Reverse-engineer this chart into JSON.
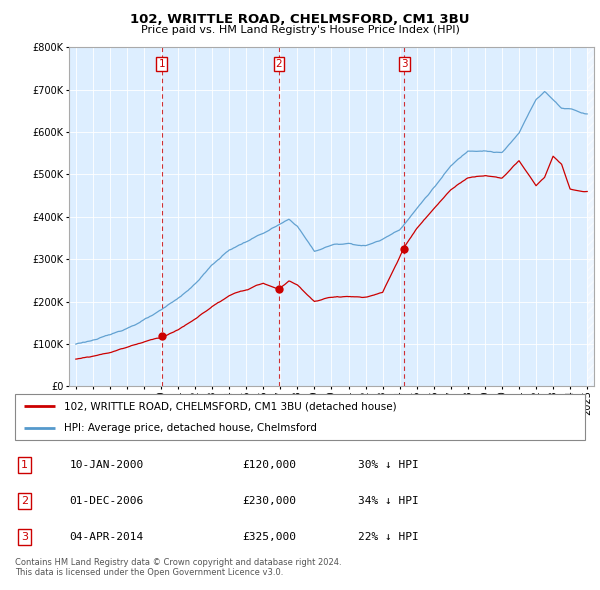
{
  "title": "102, WRITTLE ROAD, CHELMSFORD, CM1 3BU",
  "subtitle": "Price paid vs. HM Land Registry's House Price Index (HPI)",
  "sale_info": [
    {
      "label": "1",
      "date": "10-JAN-2000",
      "price": "£120,000",
      "pct": "30% ↓ HPI",
      "year": 2000.04,
      "price_val": 120000
    },
    {
      "label": "2",
      "date": "01-DEC-2006",
      "price": "£230,000",
      "pct": "34% ↓ HPI",
      "year": 2006.92,
      "price_val": 230000
    },
    {
      "label": "3",
      "date": "04-APR-2014",
      "price": "£325,000",
      "pct": "22% ↓ HPI",
      "year": 2014.26,
      "price_val": 325000
    }
  ],
  "legend_line1": "102, WRITTLE ROAD, CHELMSFORD, CM1 3BU (detached house)",
  "legend_line2": "HPI: Average price, detached house, Chelmsford",
  "footer": "Contains HM Land Registry data © Crown copyright and database right 2024.\nThis data is licensed under the Open Government Licence v3.0.",
  "line_color_red": "#cc0000",
  "line_color_blue": "#5599cc",
  "vline_color": "#cc0000",
  "chart_bg": "#ddeeff",
  "grid_color": "#ffffff",
  "ylim": [
    0,
    800000
  ],
  "yticks": [
    0,
    100000,
    200000,
    300000,
    400000,
    500000,
    600000,
    700000,
    800000
  ],
  "xlim_left": 1994.6,
  "xlim_right": 2025.4
}
